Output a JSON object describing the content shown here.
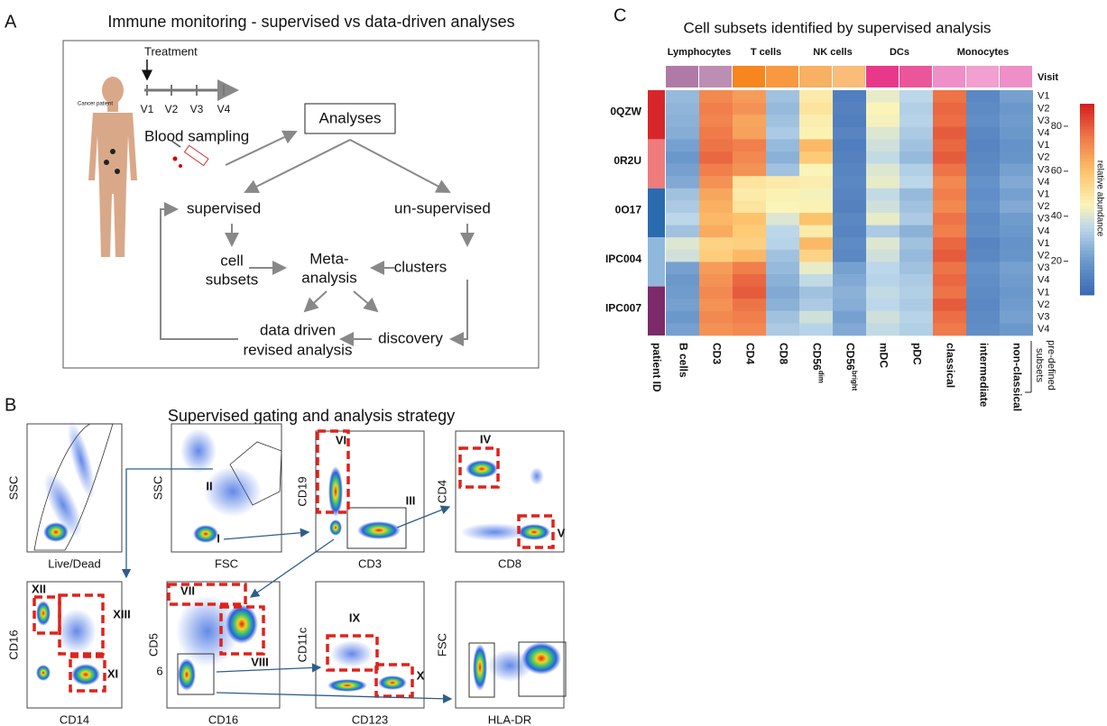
{
  "panel_a": {
    "label": "A",
    "title": "Immune monitoring - supervised vs data-driven analyses",
    "patient": "Cancer patient",
    "treatment": "Treatment",
    "visits": [
      "V1",
      "V2",
      "V3",
      "V4"
    ],
    "blood": "Blood sampling",
    "analyses": "Analyses",
    "supervised": "supervised",
    "unsupervised": "un-supervised",
    "cell_subsets": [
      "cell",
      "subsets"
    ],
    "meta": [
      "Meta-",
      "analysis"
    ],
    "clusters": "clusters",
    "revised": [
      "data driven",
      "revised analysis"
    ],
    "discovery": "discovery"
  },
  "panel_b": {
    "label": "B",
    "title": "Supervised gating and analysis strategy",
    "plots": [
      {
        "y_label": "SSC",
        "x_label": "Live/Dead",
        "gates": []
      },
      {
        "y_label": "SSC",
        "x_label": "FSC",
        "gates": [
          "II",
          "I"
        ]
      },
      {
        "y_label": "CD19",
        "x_label": "CD3",
        "gates": [
          "VI",
          "III"
        ]
      },
      {
        "y_label": "CD4",
        "x_label": "CD8",
        "gates": [
          "IV",
          "V"
        ]
      },
      {
        "y_label": "CD16",
        "x_label": "CD14",
        "gates": [
          "XII",
          "XIII",
          "XI"
        ]
      },
      {
        "y_label": "CD5",
        "y_label_2": "6",
        "x_label": "CD16",
        "gates": [
          "VII",
          "VIII"
        ]
      },
      {
        "y_label": "CD11c",
        "x_label": "CD123",
        "gates": [
          "IX",
          "X"
        ]
      },
      {
        "y_label": "FSC",
        "x_label": "HLA-DR",
        "gates": []
      }
    ]
  },
  "chart_data": {
    "type": "heatmap",
    "label": "C",
    "title": "Cell subsets identified by supervised analysis",
    "groups": [
      "Lymphocytes",
      "T cells",
      "NK cells",
      "DCs",
      "Monocytes"
    ],
    "visit_header": "Visit",
    "patient_header": "patient ID",
    "patients": [
      "0QZW",
      "0R2U",
      "0O17",
      "IPC004",
      "IPC007"
    ],
    "rows": [
      "V1",
      "V2",
      "V3",
      "V4",
      "V1",
      "V2",
      "V3",
      "V4",
      "V1",
      "V2",
      "V3",
      "V4",
      "V1",
      "V2",
      "V3",
      "V4",
      "V1",
      "V2",
      "V3",
      "V4"
    ],
    "columns": [
      "B cells",
      "CD3",
      "CD4",
      "CD8",
      "CD56",
      "CD56",
      "mDC",
      "pDC",
      "classical",
      "intermediate",
      "non-classical"
    ],
    "column_superscripts": {
      "4": "dim",
      "5": "bright"
    },
    "subsets_note": [
      "pre-defined",
      "subsets"
    ],
    "colorbar_label": "relative abundance",
    "colorbar_lim": [
      5,
      90
    ],
    "colorbar_ticks": [
      20,
      40,
      60,
      80
    ],
    "colorscale": [
      [
        5,
        "#3b68b2"
      ],
      [
        20,
        "#6b98cb"
      ],
      [
        35,
        "#bcd7e9"
      ],
      [
        45,
        "#fbf4b8"
      ],
      [
        60,
        "#fdc36c"
      ],
      [
        75,
        "#ef7a4a"
      ],
      [
        90,
        "#d21f1f"
      ]
    ],
    "values": [
      [
        28,
        72,
        68,
        30,
        48,
        12,
        42,
        35,
        76,
        15,
        22
      ],
      [
        27,
        74,
        70,
        28,
        50,
        13,
        45,
        33,
        78,
        16,
        20
      ],
      [
        26,
        73,
        66,
        30,
        47,
        12,
        44,
        34,
        77,
        17,
        21
      ],
      [
        25,
        75,
        67,
        32,
        46,
        14,
        40,
        32,
        80,
        15,
        20
      ],
      [
        22,
        76,
        74,
        28,
        62,
        12,
        38,
        30,
        78,
        14,
        18
      ],
      [
        20,
        78,
        72,
        26,
        58,
        13,
        36,
        28,
        80,
        15,
        19
      ],
      [
        22,
        74,
        70,
        30,
        45,
        14,
        40,
        33,
        76,
        16,
        22
      ],
      [
        24,
        70,
        50,
        48,
        47,
        15,
        42,
        35,
        72,
        18,
        24
      ],
      [
        30,
        66,
        48,
        46,
        44,
        14,
        36,
        28,
        74,
        17,
        22
      ],
      [
        32,
        64,
        50,
        45,
        46,
        13,
        38,
        30,
        72,
        18,
        24
      ],
      [
        35,
        62,
        60,
        40,
        60,
        15,
        42,
        32,
        76,
        16,
        21
      ],
      [
        30,
        65,
        58,
        35,
        48,
        14,
        32,
        26,
        74,
        17,
        20
      ],
      [
        40,
        55,
        56,
        34,
        62,
        16,
        40,
        30,
        78,
        14,
        18
      ],
      [
        38,
        57,
        62,
        30,
        55,
        15,
        38,
        28,
        80,
        15,
        19
      ],
      [
        22,
        68,
        74,
        28,
        42,
        22,
        35,
        30,
        76,
        18,
        22
      ],
      [
        20,
        70,
        78,
        26,
        36,
        24,
        34,
        32,
        78,
        17,
        21
      ],
      [
        21,
        72,
        80,
        24,
        30,
        26,
        36,
        33,
        76,
        16,
        20
      ],
      [
        22,
        70,
        76,
        26,
        32,
        25,
        35,
        32,
        80,
        15,
        21
      ],
      [
        20,
        72,
        74,
        30,
        38,
        22,
        38,
        34,
        77,
        16,
        22
      ],
      [
        22,
        70,
        72,
        32,
        34,
        24,
        36,
        33,
        75,
        17,
        20
      ]
    ]
  }
}
